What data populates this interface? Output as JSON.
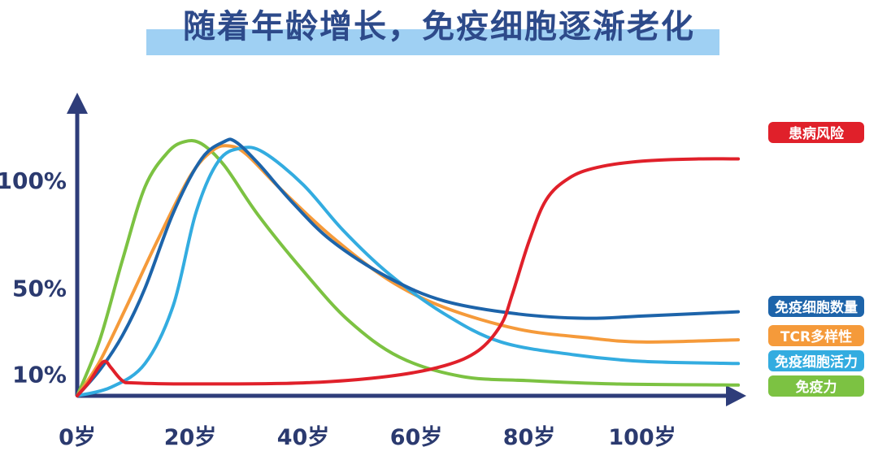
{
  "chart_data": {
    "type": "line",
    "title": "随着年龄增长，免疫细胞逐渐老化",
    "xlabel": "",
    "ylabel": "",
    "x_ticks": [
      {
        "age": 0,
        "label": "0岁"
      },
      {
        "age": 20,
        "label": "20岁"
      },
      {
        "age": 40,
        "label": "40岁"
      },
      {
        "age": 60,
        "label": "60岁"
      },
      {
        "age": 80,
        "label": "80岁"
      },
      {
        "age": 100,
        "label": "100岁"
      }
    ],
    "y_ticks": [
      {
        "value": 10,
        "label": "10%"
      },
      {
        "value": 50,
        "label": "50%"
      },
      {
        "value": 100,
        "label": "100%"
      }
    ],
    "xlim": [
      0,
      120
    ],
    "ylim": [
      0,
      125
    ],
    "legend_placement": "right, at line ends",
    "grid": false,
    "series": [
      {
        "name": "患病风险",
        "color": "#e0202a",
        "points": [
          [
            0,
            0
          ],
          [
            2,
            6
          ],
          [
            4,
            14
          ],
          [
            5,
            16
          ],
          [
            6,
            13
          ],
          [
            8,
            7
          ],
          [
            10,
            6
          ],
          [
            20,
            5.5
          ],
          [
            40,
            6
          ],
          [
            55,
            9
          ],
          [
            65,
            14
          ],
          [
            71,
            21
          ],
          [
            75,
            33
          ],
          [
            77,
            47
          ],
          [
            80,
            72
          ],
          [
            83,
            91
          ],
          [
            87,
            101
          ],
          [
            92,
            106
          ],
          [
            100,
            109
          ],
          [
            110,
            110
          ],
          [
            117,
            110
          ]
        ]
      },
      {
        "name": "免疫细胞数量",
        "color": "#1d64aa",
        "points": [
          [
            0,
            0
          ],
          [
            4,
            12
          ],
          [
            8,
            28
          ],
          [
            12,
            50
          ],
          [
            17,
            85
          ],
          [
            22,
            110
          ],
          [
            26,
            118
          ],
          [
            28,
            118
          ],
          [
            32,
            108
          ],
          [
            38,
            90
          ],
          [
            45,
            72
          ],
          [
            55,
            55
          ],
          [
            65,
            44
          ],
          [
            78,
            38
          ],
          [
            90,
            36
          ],
          [
            100,
            37
          ],
          [
            117,
            39
          ]
        ]
      },
      {
        "name": "TCR多样性",
        "color": "#f59a3a",
        "points": [
          [
            0,
            0
          ],
          [
            4,
            16
          ],
          [
            9,
            43
          ],
          [
            14,
            71
          ],
          [
            20,
            102
          ],
          [
            24,
            114
          ],
          [
            27,
            116
          ],
          [
            30,
            112
          ],
          [
            36,
            96
          ],
          [
            45,
            74
          ],
          [
            55,
            54
          ],
          [
            65,
            41
          ],
          [
            78,
            31
          ],
          [
            90,
            27
          ],
          [
            100,
            25
          ],
          [
            117,
            26
          ]
        ]
      },
      {
        "name": "免疫细胞活力",
        "color": "#33ace0",
        "points": [
          [
            0,
            0
          ],
          [
            6,
            4
          ],
          [
            12,
            15
          ],
          [
            17,
            42
          ],
          [
            21,
            85
          ],
          [
            25,
            109
          ],
          [
            29,
            115
          ],
          [
            33,
            113
          ],
          [
            40,
            98
          ],
          [
            47,
            77
          ],
          [
            55,
            57
          ],
          [
            65,
            38
          ],
          [
            75,
            25
          ],
          [
            88,
            19
          ],
          [
            100,
            16
          ],
          [
            117,
            15
          ]
        ]
      },
      {
        "name": "免疫力",
        "color": "#7cc242",
        "points": [
          [
            0,
            0
          ],
          [
            4,
            26
          ],
          [
            8,
            63
          ],
          [
            12,
            97
          ],
          [
            16,
            113
          ],
          [
            19,
            118
          ],
          [
            22,
            117
          ],
          [
            26,
            107
          ],
          [
            32,
            84
          ],
          [
            40,
            58
          ],
          [
            48,
            35
          ],
          [
            57,
            18
          ],
          [
            68,
            9
          ],
          [
            80,
            7
          ],
          [
            95,
            5.5
          ],
          [
            117,
            5
          ]
        ]
      }
    ]
  }
}
